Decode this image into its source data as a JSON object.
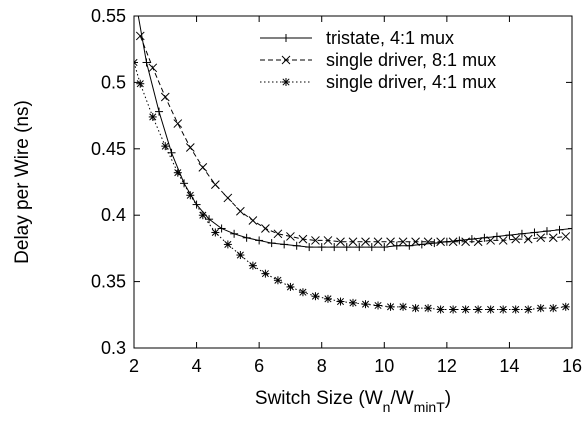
{
  "chart_data": {
    "type": "line",
    "title": "",
    "xlabel": "Switch Size (W",
    "xlabel_sub1": "n",
    "xlabel_mid": "/W",
    "xlabel_sub2": "minT",
    "xlabel_end": ")",
    "ylabel": "Delay per Wire (ns)",
    "xlim": [
      2,
      16
    ],
    "ylim": [
      0.3,
      0.55
    ],
    "xticks": [
      2,
      4,
      6,
      8,
      10,
      12,
      14,
      16
    ],
    "yticks": [
      0.3,
      0.35,
      0.4,
      0.45,
      0.5,
      0.55
    ],
    "xtick_labels": [
      "2",
      "4",
      "6",
      "8",
      "10",
      "12",
      "14",
      "16"
    ],
    "ytick_labels": [
      "0.3",
      "0.35",
      "0.4",
      "0.45",
      "0.5",
      "0.55"
    ],
    "legend_position": "top-right",
    "grid": false,
    "series": [
      {
        "name": "tristate, 4:1 mux",
        "line_style": "solid",
        "marker": "plus",
        "x": [
          2.1,
          2.4,
          2.8,
          3.2,
          3.6,
          4.0,
          4.4,
          4.8,
          5.2,
          5.6,
          6.0,
          6.4,
          6.8,
          7.2,
          7.6,
          8.0,
          8.4,
          8.8,
          9.2,
          9.6,
          10.0,
          10.4,
          10.8,
          11.2,
          11.6,
          12.0,
          12.4,
          12.8,
          13.2,
          13.6,
          14.0,
          14.4,
          14.8,
          15.2,
          15.6,
          16.0
        ],
        "y": [
          0.555,
          0.515,
          0.478,
          0.447,
          0.424,
          0.408,
          0.397,
          0.39,
          0.386,
          0.383,
          0.381,
          0.379,
          0.378,
          0.377,
          0.376,
          0.376,
          0.376,
          0.376,
          0.376,
          0.376,
          0.376,
          0.377,
          0.377,
          0.378,
          0.379,
          0.38,
          0.381,
          0.382,
          0.383,
          0.384,
          0.385,
          0.386,
          0.387,
          0.388,
          0.389,
          0.39
        ]
      },
      {
        "name": "single driver, 8:1 mux",
        "line_style": "dashed",
        "marker": "cross",
        "x": [
          2.2,
          2.6,
          3.0,
          3.4,
          3.8,
          4.2,
          4.6,
          5.0,
          5.4,
          5.8,
          6.2,
          6.6,
          7.0,
          7.4,
          7.8,
          8.2,
          8.6,
          9.0,
          9.4,
          9.8,
          10.2,
          10.6,
          11.0,
          11.4,
          11.8,
          12.2,
          12.6,
          13.0,
          13.4,
          13.8,
          14.2,
          14.6,
          15.0,
          15.4,
          15.8
        ],
        "y": [
          0.535,
          0.511,
          0.489,
          0.469,
          0.451,
          0.436,
          0.423,
          0.413,
          0.403,
          0.396,
          0.39,
          0.386,
          0.384,
          0.382,
          0.381,
          0.381,
          0.38,
          0.38,
          0.38,
          0.38,
          0.38,
          0.38,
          0.38,
          0.38,
          0.38,
          0.38,
          0.38,
          0.38,
          0.381,
          0.381,
          0.382,
          0.382,
          0.383,
          0.383,
          0.384
        ]
      },
      {
        "name": "single driver, 4:1 mux",
        "line_style": "dotted",
        "marker": "star",
        "x": [
          2.0,
          2.2,
          2.6,
          3.0,
          3.4,
          3.8,
          4.2,
          4.6,
          5.0,
          5.4,
          5.8,
          6.2,
          6.6,
          7.0,
          7.4,
          7.8,
          8.2,
          8.6,
          9.0,
          9.4,
          9.8,
          10.2,
          10.6,
          11.0,
          11.4,
          11.8,
          12.2,
          12.6,
          13.0,
          13.4,
          13.8,
          14.2,
          14.6,
          15.0,
          15.4,
          15.8
        ],
        "y": [
          0.515,
          0.499,
          0.474,
          0.452,
          0.432,
          0.415,
          0.4,
          0.387,
          0.378,
          0.37,
          0.362,
          0.356,
          0.351,
          0.346,
          0.342,
          0.339,
          0.337,
          0.335,
          0.334,
          0.333,
          0.332,
          0.331,
          0.331,
          0.33,
          0.33,
          0.329,
          0.329,
          0.329,
          0.329,
          0.329,
          0.329,
          0.329,
          0.329,
          0.33,
          0.33,
          0.331
        ]
      }
    ]
  }
}
